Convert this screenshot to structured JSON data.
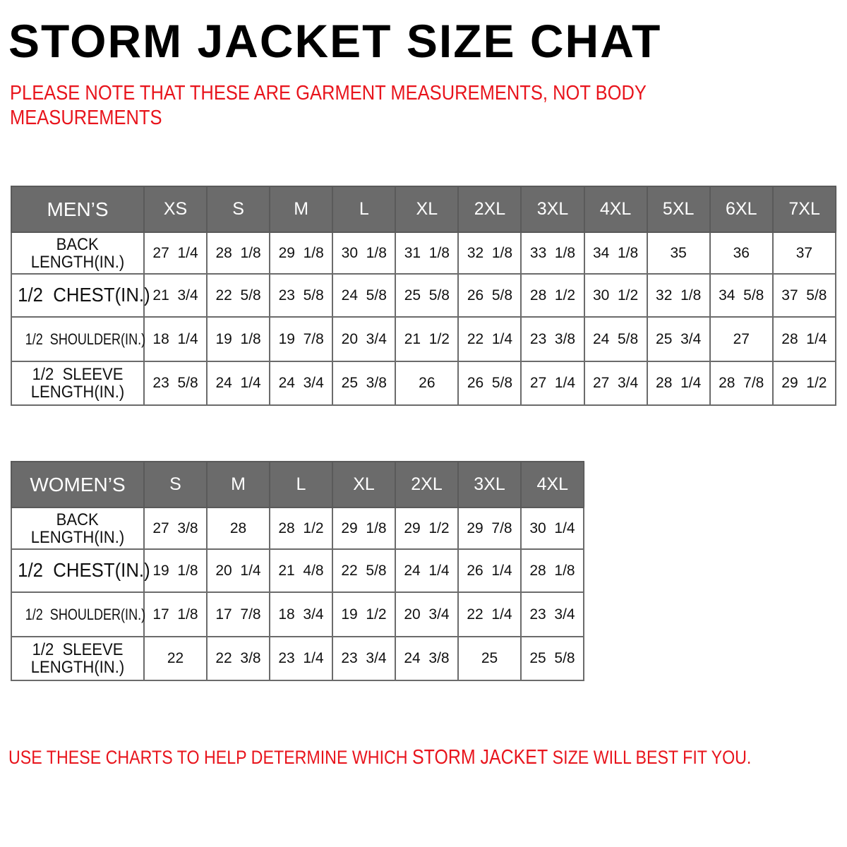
{
  "title": "STORM JACKET SIZE CHAT",
  "note_line1": "PLEASE NOTE THAT THESE ARE GARMENT MEASUREMENTS, NOT BODY",
  "note_line2": "MEASUREMENTS",
  "footer": {
    "part1": "USE THESE CHARTS TO HELP DETERMINE WHICH ",
    "brand": "STORM JACKET",
    "part2": "  SIZE WILL BEST FIT YOU."
  },
  "colors": {
    "header_bg": "#6b6b6b",
    "note_red": "#e8141c"
  },
  "mens": {
    "corner": "MEN’S",
    "sizes": [
      "XS",
      "S",
      "M",
      "L",
      "XL",
      "2XL",
      "3XL",
      "4XL",
      "5XL",
      "6XL",
      "7XL"
    ],
    "rows": [
      {
        "label_1": "BACK",
        "label_2": "LENGTH(IN.)",
        "values": [
          "27  1/4",
          "28  1/8",
          "29  1/8",
          "30  1/8",
          "31  1/8",
          "32  1/8",
          "33  1/8",
          "34  1/8",
          "35",
          "36",
          "37"
        ]
      },
      {
        "label_1": "1/2  CHEST(IN.)",
        "label_2": "",
        "values": [
          "21  3/4",
          "22  5/8",
          "23  5/8",
          "24  5/8",
          "25  5/8",
          "26  5/8",
          "28  1/2",
          "30  1/2",
          "32  1/8",
          "34  5/8",
          "37  5/8"
        ]
      },
      {
        "label_1": "1/2  SHOULDER(IN.)",
        "label_2": "",
        "values": [
          "18  1/4",
          "19  1/8",
          "19  7/8",
          "20  3/4",
          "21  1/2",
          "22  1/4",
          "23  3/8",
          "24  5/8",
          "25  3/4",
          "27",
          "28  1/4"
        ]
      },
      {
        "label_1": "1/2  SLEEVE",
        "label_2": "LENGTH(IN.)",
        "values": [
          "23  5/8",
          "24  1/4",
          "24  3/4",
          "25  3/8",
          "26",
          "26  5/8",
          "27  1/4",
          "27  3/4",
          "28  1/4",
          "28  7/8",
          "29  1/2"
        ]
      }
    ]
  },
  "womens": {
    "corner": "WOMEN’S",
    "sizes": [
      "S",
      "M",
      "L",
      "XL",
      "2XL",
      "3XL",
      "4XL"
    ],
    "rows": [
      {
        "label_1": "BACK",
        "label_2": "LENGTH(IN.)",
        "values": [
          "27  3/8",
          "28",
          "28  1/2",
          "29  1/8",
          "29  1/2",
          "29  7/8",
          "30  1/4"
        ]
      },
      {
        "label_1": "1/2  CHEST(IN.)",
        "label_2": "",
        "values": [
          "19  1/8",
          "20  1/4",
          "21  4/8",
          "22  5/8",
          "24  1/4",
          "26  1/4",
          "28  1/8"
        ]
      },
      {
        "label_1": "1/2  SHOULDER(IN.)",
        "label_2": "",
        "values": [
          "17  1/8",
          "17  7/8",
          "18  3/4",
          "19  1/2",
          "20  3/4",
          "22  1/4",
          "23  3/4"
        ]
      },
      {
        "label_1": "1/2  SLEEVE",
        "label_2": "LENGTH(IN.)",
        "values": [
          "22",
          "22  3/8",
          "23  1/4",
          "23  3/4",
          "24  3/8",
          "25",
          "25  5/8"
        ]
      }
    ]
  }
}
